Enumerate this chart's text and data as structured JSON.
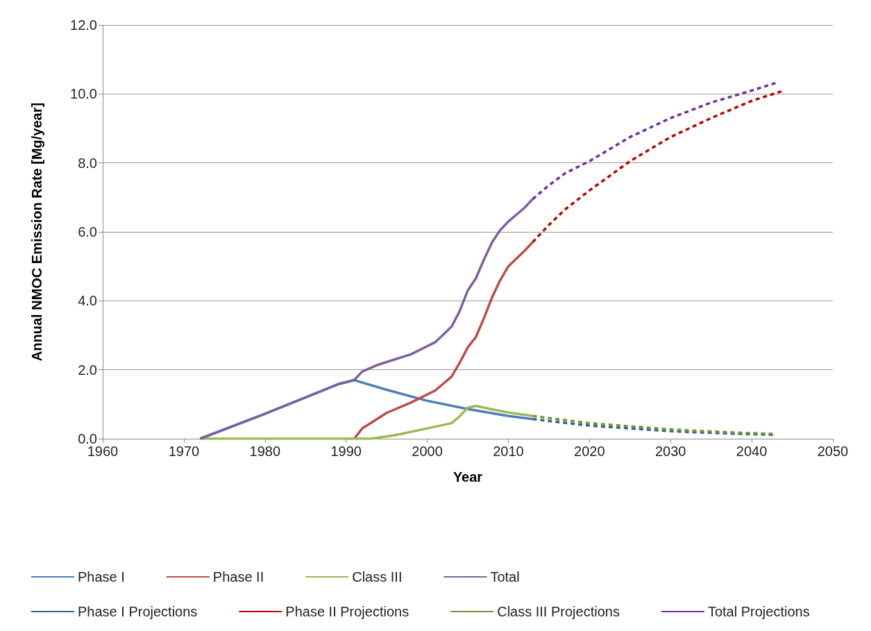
{
  "chart_data": {
    "type": "line",
    "xlabel": "Year",
    "ylabel": "Annual NMOC Emission Rate [Mg/year]",
    "xlim": [
      1960,
      2050
    ],
    "xticks": [
      1960,
      1970,
      1980,
      1990,
      2000,
      2010,
      2020,
      2030,
      2040,
      2050
    ],
    "ylim": [
      0,
      12
    ],
    "yticks": [
      {
        "value": 0,
        "label": "0.0"
      },
      {
        "value": 2,
        "label": "2.0"
      },
      {
        "value": 4,
        "label": "4.0"
      },
      {
        "value": 6,
        "label": "6.0"
      },
      {
        "value": 8,
        "label": "8.0"
      },
      {
        "value": 10,
        "label": "10.0"
      },
      {
        "value": 12,
        "label": "12.0"
      }
    ],
    "grid": "y",
    "legend": "bottom",
    "marker": "none",
    "series": [
      {
        "name": "Phase I",
        "color": "#4a7ebb",
        "line_style": "solid",
        "x": [
          1972,
          1980,
          1989,
          1991,
          1995,
          2000,
          2005,
          2010,
          2013
        ],
        "values": [
          0,
          0.72,
          1.58,
          1.7,
          1.42,
          1.1,
          0.86,
          0.66,
          0.57
        ]
      },
      {
        "name": "Phase II",
        "color": "#be4b48",
        "line_style": "solid",
        "x": [
          1991,
          1992,
          1993,
          1995,
          1998,
          2001,
          2003,
          2004,
          2005,
          2006,
          2007,
          2008,
          2009,
          2010,
          2012,
          2013
        ],
        "values": [
          0,
          0.3,
          0.45,
          0.75,
          1.05,
          1.4,
          1.8,
          2.2,
          2.65,
          2.95,
          3.5,
          4.1,
          4.6,
          5.0,
          5.45,
          5.7
        ]
      },
      {
        "name": "Class III",
        "color": "#98b954",
        "line_style": "solid",
        "x": [
          1972,
          1993,
          1996,
          2000,
          2003,
          2004,
          2005,
          2006,
          2008,
          2010,
          2013
        ],
        "values": [
          0,
          0,
          0.1,
          0.3,
          0.45,
          0.65,
          0.9,
          0.95,
          0.85,
          0.76,
          0.66
        ]
      },
      {
        "name": "Total",
        "color": "#7d60a0",
        "line_style": "solid",
        "x": [
          1972,
          1980,
          1989,
          1991,
          1992,
          1994,
          1996,
          1998,
          2001,
          2003,
          2004,
          2005,
          2006,
          2007,
          2008,
          2009,
          2010,
          2012,
          2013
        ],
        "values": [
          0,
          0.72,
          1.58,
          1.7,
          1.95,
          2.15,
          2.3,
          2.45,
          2.8,
          3.25,
          3.7,
          4.3,
          4.65,
          5.2,
          5.7,
          6.05,
          6.3,
          6.7,
          6.95
        ]
      },
      {
        "name": "Phase I Projections",
        "color": "#376092",
        "line_style": "dashed",
        "x": [
          2013,
          2020,
          2025,
          2030,
          2035,
          2040,
          2043
        ],
        "values": [
          0.57,
          0.38,
          0.3,
          0.22,
          0.17,
          0.13,
          0.11
        ]
      },
      {
        "name": "Phase II Projections",
        "color": "#c00000",
        "line_style": "dashed",
        "x": [
          2013,
          2015,
          2017,
          2020,
          2025,
          2030,
          2035,
          2040,
          2044
        ],
        "values": [
          5.7,
          6.2,
          6.65,
          7.2,
          8.05,
          8.75,
          9.3,
          9.8,
          10.1
        ]
      },
      {
        "name": "Class III Projections",
        "color": "#77933c",
        "line_style": "dashed",
        "x": [
          2013,
          2020,
          2025,
          2030,
          2035,
          2040,
          2043
        ],
        "values": [
          0.66,
          0.45,
          0.36,
          0.27,
          0.21,
          0.16,
          0.14
        ]
      },
      {
        "name": "Total Projections",
        "color": "#7030a0",
        "line_style": "dashed",
        "x": [
          2013,
          2015,
          2017,
          2020,
          2025,
          2030,
          2035,
          2040,
          2043
        ],
        "values": [
          6.95,
          7.35,
          7.7,
          8.05,
          8.75,
          9.3,
          9.75,
          10.1,
          10.32
        ]
      }
    ]
  }
}
